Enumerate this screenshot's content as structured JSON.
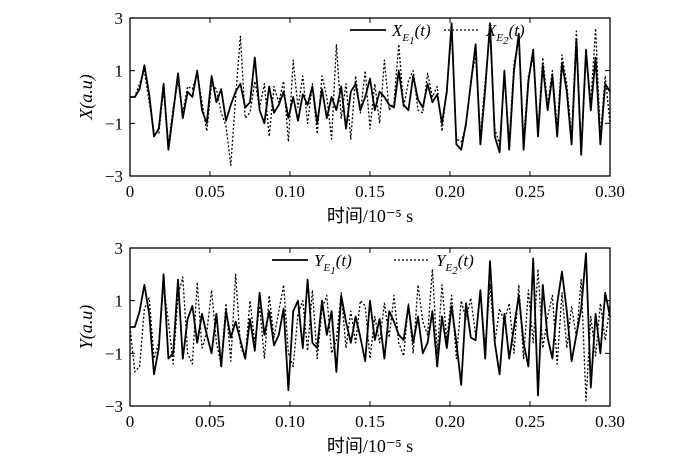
{
  "chart_data": [
    {
      "type": "line",
      "ylabel": "X(a.u)",
      "xlabel": "时间/10⁻⁵ s",
      "xlim": [
        0,
        0.3
      ],
      "ylim": [
        -3,
        3
      ],
      "xticks": [
        "0",
        "0.05",
        "0.10",
        "0.15",
        "0.20",
        "0.25",
        "0.30"
      ],
      "yticks": [
        "3",
        "1",
        "−1",
        "−3"
      ],
      "legend": "top-right",
      "series": [
        {
          "name": "X_E1(t)",
          "legend_main": "X",
          "legend_sub": "E",
          "legend_subsub": "1",
          "legend_arg": "(t)",
          "style": "solid",
          "x": [
            0,
            0.003,
            0.006,
            0.009,
            0.012,
            0.015,
            0.018,
            0.021,
            0.024,
            0.027,
            0.03,
            0.033,
            0.036,
            0.039,
            0.042,
            0.045,
            0.048,
            0.051,
            0.054,
            0.057,
            0.06,
            0.063,
            0.066,
            0.069,
            0.072,
            0.075,
            0.078,
            0.081,
            0.084,
            0.087,
            0.09,
            0.093,
            0.096,
            0.099,
            0.102,
            0.105,
            0.108,
            0.111,
            0.114,
            0.117,
            0.12,
            0.123,
            0.126,
            0.129,
            0.132,
            0.135,
            0.138,
            0.141,
            0.144,
            0.147,
            0.15,
            0.153,
            0.156,
            0.159,
            0.162,
            0.165,
            0.168,
            0.171,
            0.174,
            0.177,
            0.18,
            0.183,
            0.186,
            0.189,
            0.192,
            0.195,
            0.198,
            0.201,
            0.204,
            0.207,
            0.21,
            0.213,
            0.216,
            0.219,
            0.222,
            0.225,
            0.228,
            0.231,
            0.234,
            0.237,
            0.24,
            0.243,
            0.246,
            0.249,
            0.252,
            0.255,
            0.258,
            0.261,
            0.264,
            0.267,
            0.27,
            0.273,
            0.276,
            0.279,
            0.282,
            0.285,
            0.288,
            0.291,
            0.294,
            0.297,
            0.3
          ],
          "values": [
            0,
            0,
            0.3,
            1.2,
            0.1,
            -1.5,
            -1.2,
            0.5,
            -2.0,
            -0.6,
            0.9,
            -0.8,
            0.2,
            0.0,
            1.0,
            -0.5,
            -1.0,
            0.8,
            -0.2,
            0.3,
            -0.9,
            -0.3,
            0.2,
            0.5,
            -0.4,
            -0.2,
            1.5,
            -0.5,
            -1.0,
            0.4,
            -0.6,
            -0.3,
            0.2,
            -0.8,
            0.0,
            -0.9,
            0.1,
            -0.3,
            0.4,
            -1.0,
            0.3,
            -0.8,
            0.0,
            -0.5,
            0.4,
            -1.2,
            0.2,
            0.5,
            -0.5,
            0.0,
            0.7,
            -0.5,
            0.2,
            0.0,
            -0.3,
            -0.4,
            1.0,
            -0.3,
            -0.5,
            0.8,
            -0.1,
            -0.4,
            0.5,
            -0.2,
            0.1,
            -1.0,
            0.2,
            2.8,
            -1.8,
            -2.0,
            -1.0,
            0.5,
            2.0,
            -1.8,
            0.3,
            2.8,
            -1.5,
            -2.1,
            1.0,
            -2.0,
            1.0,
            2.4,
            -2.0,
            0.6,
            1.8,
            -1.5,
            1.2,
            -0.5,
            0.8,
            -1.5,
            1.3,
            0.2,
            -1.8,
            2.2,
            -2.2,
            1.8,
            -0.5,
            1.5,
            -1.8,
            0.5,
            0.2
          ]
        },
        {
          "name": "X_E2(t)",
          "legend_main": "X",
          "legend_sub": "E",
          "legend_subsub": "2",
          "legend_arg": "(t)",
          "style": "dotted",
          "x": [
            0,
            0.003,
            0.006,
            0.009,
            0.012,
            0.015,
            0.018,
            0.021,
            0.024,
            0.027,
            0.03,
            0.033,
            0.036,
            0.039,
            0.042,
            0.045,
            0.048,
            0.051,
            0.054,
            0.057,
            0.06,
            0.063,
            0.066,
            0.069,
            0.072,
            0.075,
            0.078,
            0.081,
            0.084,
            0.087,
            0.09,
            0.093,
            0.096,
            0.099,
            0.102,
            0.105,
            0.108,
            0.111,
            0.114,
            0.117,
            0.12,
            0.123,
            0.126,
            0.129,
            0.132,
            0.135,
            0.138,
            0.141,
            0.144,
            0.147,
            0.15,
            0.153,
            0.156,
            0.159,
            0.162,
            0.165,
            0.168,
            0.171,
            0.174,
            0.177,
            0.18,
            0.183,
            0.186,
            0.189,
            0.192,
            0.195,
            0.198,
            0.201,
            0.204,
            0.207,
            0.21,
            0.213,
            0.216,
            0.219,
            0.222,
            0.225,
            0.228,
            0.231,
            0.234,
            0.237,
            0.24,
            0.243,
            0.246,
            0.249,
            0.252,
            0.255,
            0.258,
            0.261,
            0.264,
            0.267,
            0.27,
            0.273,
            0.276,
            0.279,
            0.282,
            0.285,
            0.288,
            0.291,
            0.294,
            0.297,
            0.3
          ],
          "values": [
            0,
            0,
            0.5,
            1.0,
            -0.2,
            -1.3,
            -1.4,
            0.3,
            -1.8,
            -0.4,
            0.6,
            -0.6,
            0.4,
            0.3,
            0.9,
            -0.2,
            -1.3,
            0.5,
            0.3,
            -0.6,
            -1.1,
            -2.6,
            0.0,
            2.3,
            -0.8,
            -0.6,
            0.6,
            -0.4,
            0.5,
            -1.5,
            0.4,
            -0.2,
            0.6,
            -1.7,
            1.4,
            -0.4,
            0.8,
            -1.0,
            0.5,
            -1.4,
            0.8,
            0.0,
            -1.6,
            2.0,
            -0.8,
            0.5,
            -1.6,
            0.8,
            -0.6,
            1.0,
            -1.2,
            0.5,
            -1.0,
            1.4,
            -0.5,
            -0.2,
            2.0,
            -0.4,
            0.6,
            1.0,
            -0.5,
            -0.6,
            0.9,
            0.0,
            0.4,
            -1.3,
            0.3,
            2.5,
            -1.6,
            -1.7,
            -1.1,
            0.6,
            1.6,
            -1.5,
            0.6,
            2.4,
            -1.2,
            -1.8,
            0.8,
            -1.7,
            1.3,
            2.1,
            -1.6,
            0.8,
            1.5,
            -1.2,
            1.5,
            -0.3,
            1.0,
            -1.2,
            1.6,
            0.5,
            -1.5,
            2.5,
            -2.0,
            1.5,
            -0.2,
            2.6,
            -1.5,
            0.8,
            -1.0
          ]
        }
      ]
    },
    {
      "type": "line",
      "ylabel": "Y(a.u)",
      "xlabel": "时间/10⁻⁵ s",
      "xlim": [
        0,
        0.3
      ],
      "ylim": [
        -3,
        3
      ],
      "xticks": [
        "0",
        "0.05",
        "0.10",
        "0.15",
        "0.20",
        "0.25",
        "0.30"
      ],
      "yticks": [
        "3",
        "1",
        "−1",
        "−3"
      ],
      "legend": "top-right",
      "series": [
        {
          "name": "Y_E1(t)",
          "legend_main": "Y",
          "legend_sub": "E",
          "legend_subsub": "1",
          "legend_arg": "(t)",
          "style": "solid",
          "x": [
            0,
            0.003,
            0.006,
            0.009,
            0.012,
            0.015,
            0.018,
            0.021,
            0.024,
            0.027,
            0.03,
            0.033,
            0.036,
            0.039,
            0.042,
            0.045,
            0.048,
            0.051,
            0.054,
            0.057,
            0.06,
            0.063,
            0.066,
            0.069,
            0.072,
            0.075,
            0.078,
            0.081,
            0.084,
            0.087,
            0.09,
            0.093,
            0.096,
            0.099,
            0.102,
            0.105,
            0.108,
            0.111,
            0.114,
            0.117,
            0.12,
            0.123,
            0.126,
            0.129,
            0.132,
            0.135,
            0.138,
            0.141,
            0.144,
            0.147,
            0.15,
            0.153,
            0.156,
            0.159,
            0.162,
            0.165,
            0.168,
            0.171,
            0.174,
            0.177,
            0.18,
            0.183,
            0.186,
            0.189,
            0.192,
            0.195,
            0.198,
            0.201,
            0.204,
            0.207,
            0.21,
            0.213,
            0.216,
            0.219,
            0.222,
            0.225,
            0.228,
            0.231,
            0.234,
            0.237,
            0.24,
            0.243,
            0.246,
            0.249,
            0.252,
            0.255,
            0.258,
            0.261,
            0.264,
            0.267,
            0.27,
            0.273,
            0.276,
            0.279,
            0.282,
            0.285,
            0.288,
            0.291,
            0.294,
            0.297,
            0.3
          ],
          "values": [
            0,
            0,
            0.6,
            1.6,
            0.5,
            -1.8,
            -0.8,
            2.0,
            -1.2,
            -1.0,
            1.8,
            -1.2,
            0.3,
            0.8,
            -0.6,
            0.5,
            -0.3,
            -1.0,
            0.5,
            -1.5,
            0.6,
            -0.4,
            0.2,
            -0.5,
            -1.2,
            0.3,
            -0.9,
            1.3,
            -0.3,
            0.6,
            -0.7,
            -0.3,
            0.7,
            -2.4,
            0.6,
            1.0,
            -0.8,
            1.8,
            -0.6,
            -0.8,
            1.0,
            -0.3,
            0.6,
            -1.7,
            1.2,
            0.2,
            -0.6,
            0.4,
            -0.4,
            -1.3,
            1.0,
            -0.5,
            0.3,
            -1.2,
            0.6,
            0.2,
            -0.3,
            -0.5,
            0.8,
            -0.6,
            0.4,
            -1.0,
            -0.6,
            0.6,
            -1.5,
            0.4,
            -0.8,
            0.8,
            -0.6,
            -2.2,
            0.9,
            -0.4,
            -0.5,
            1.4,
            -1.2,
            2.5,
            -0.6,
            -1.8,
            0.5,
            -1.2,
            0.0,
            1.2,
            -0.6,
            -1.5,
            2.6,
            -2.6,
            1.6,
            -0.4,
            -1.2,
            0.9,
            2.1,
            0.6,
            -1.3,
            -0.3,
            0.7,
            2.8,
            -2.3,
            0.5,
            -1.0,
            1.3,
            0.4
          ]
        },
        {
          "name": "Y_E2(t)",
          "legend_main": "Y",
          "legend_sub": "E",
          "legend_subsub": "2",
          "legend_arg": "(t)",
          "style": "dotted",
          "x": [
            0,
            0.003,
            0.006,
            0.009,
            0.012,
            0.015,
            0.018,
            0.021,
            0.024,
            0.027,
            0.03,
            0.033,
            0.036,
            0.039,
            0.042,
            0.045,
            0.048,
            0.051,
            0.054,
            0.057,
            0.06,
            0.063,
            0.066,
            0.069,
            0.072,
            0.075,
            0.078,
            0.081,
            0.084,
            0.087,
            0.09,
            0.093,
            0.096,
            0.099,
            0.102,
            0.105,
            0.108,
            0.111,
            0.114,
            0.117,
            0.12,
            0.123,
            0.126,
            0.129,
            0.132,
            0.135,
            0.138,
            0.141,
            0.144,
            0.147,
            0.15,
            0.153,
            0.156,
            0.159,
            0.162,
            0.165,
            0.168,
            0.171,
            0.174,
            0.177,
            0.18,
            0.183,
            0.186,
            0.189,
            0.192,
            0.195,
            0.198,
            0.201,
            0.204,
            0.207,
            0.21,
            0.213,
            0.216,
            0.219,
            0.222,
            0.225,
            0.228,
            0.231,
            0.234,
            0.237,
            0.24,
            0.243,
            0.246,
            0.249,
            0.252,
            0.255,
            0.258,
            0.261,
            0.264,
            0.267,
            0.27,
            0.273,
            0.276,
            0.279,
            0.282,
            0.285,
            0.288,
            0.291,
            0.294,
            0.297,
            0.3
          ],
          "values": [
            0,
            -1.7,
            -1.5,
            0.7,
            1.1,
            -1.2,
            -0.6,
            1.6,
            0.2,
            -1.4,
            1.2,
            1.9,
            -1.0,
            -1.4,
            1.7,
            -0.8,
            -0.2,
            1.4,
            -0.6,
            -1.4,
            0.9,
            -1.3,
            2.0,
            -0.7,
            -1.2,
            1.0,
            -0.6,
            0.8,
            -1.2,
            1.2,
            -0.4,
            0.6,
            1.6,
            -1.0,
            -1.5,
            0.5,
            1.0,
            -0.9,
            1.4,
            -1.2,
            0.7,
            1.2,
            -1.0,
            -0.5,
            1.3,
            -0.8,
            0.6,
            -0.6,
            1.0,
            0.8,
            -1.2,
            0.4,
            -0.6,
            0.9,
            -0.4,
            1.2,
            -0.6,
            -1.1,
            0.9,
            -1.0,
            1.6,
            0.2,
            -0.3,
            2.2,
            -1.0,
            1.6,
            -0.5,
            1.2,
            -1.2,
            1.0,
            0.3,
            1.1,
            -0.3,
            1.3,
            -0.8,
            1.6,
            -0.6,
            0.7,
            0.2,
            0.9,
            -1.0,
            1.6,
            -1.2,
            1.4,
            -0.6,
            2.2,
            -0.8,
            0.4,
            1.2,
            -1.4,
            1.3,
            -0.8,
            0.8,
            -0.4,
            1.8,
            -2.8,
            0.4,
            -1.1,
            0.9,
            -0.5,
            0.8
          ]
        }
      ]
    }
  ]
}
